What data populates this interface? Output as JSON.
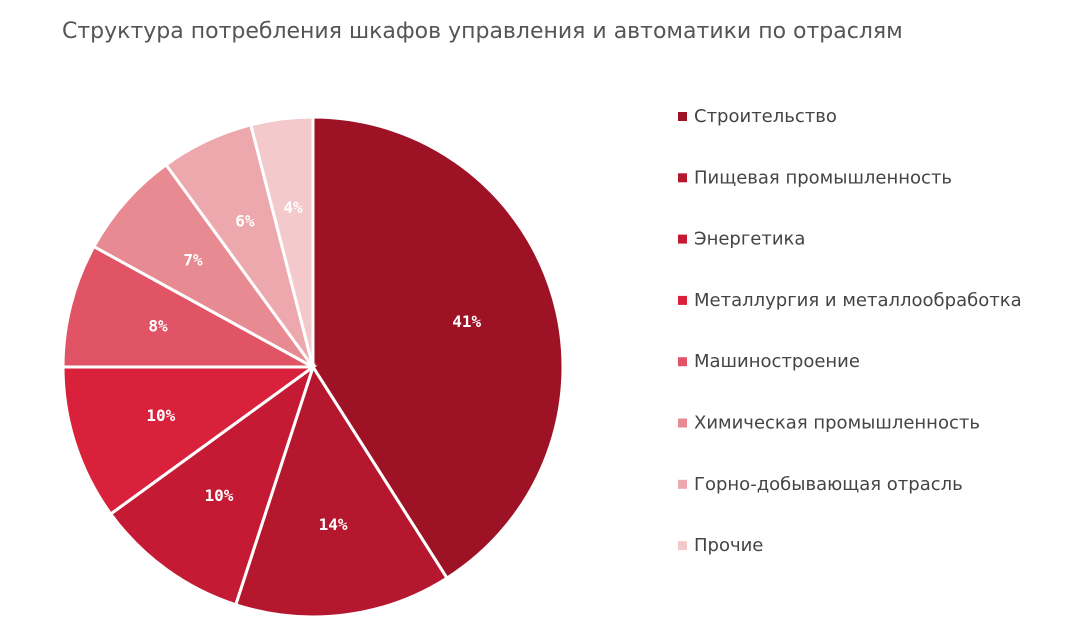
{
  "chart_data": {
    "type": "pie",
    "title": "Структура потребления шкафов управления и автоматики по отраслям",
    "categories": [
      "Строительство",
      "Пищевая промышленность",
      "Энергетика",
      "Металлургия и металлообработка",
      "Машиностроение",
      "Химическая промышленность",
      "Горно-добывающая отрасль",
      "Прочие"
    ],
    "values": [
      41,
      14,
      10,
      10,
      8,
      7,
      6,
      4
    ],
    "value_labels": [
      "41%",
      "14%",
      "10%",
      "10%",
      "8%",
      "7%",
      "6%",
      "4%"
    ],
    "colors": [
      "#9e1226",
      "#b5172e",
      "#c41a33",
      "#d9213b",
      "#e05466",
      "#e88a92",
      "#eda8ad",
      "#f3c9cc"
    ],
    "legend": "right"
  }
}
